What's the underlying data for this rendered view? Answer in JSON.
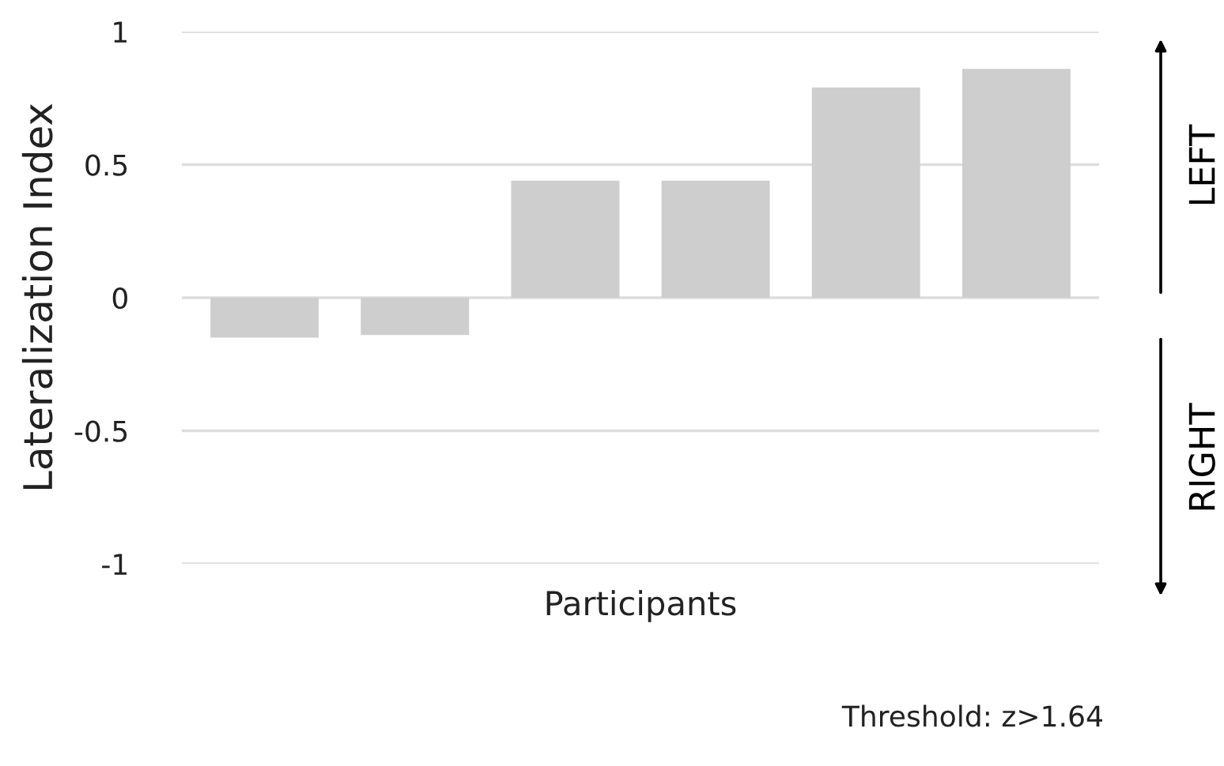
{
  "chart_data": {
    "type": "bar",
    "xlabel": "Participants",
    "ylabel": "Lateralization Index",
    "categories": [
      null,
      null,
      null,
      null,
      null,
      null
    ],
    "values": [
      -0.15,
      -0.14,
      0.44,
      0.44,
      0.79,
      0.86
    ],
    "color": "#cfcecf",
    "ylim": [
      -1,
      1
    ],
    "yticks": [
      1,
      0.5,
      0,
      -0.5,
      -1
    ],
    "grid": "y",
    "annotations": [
      "LEFT",
      "RIGHT",
      "Threshold: z>1.64"
    ]
  }
}
